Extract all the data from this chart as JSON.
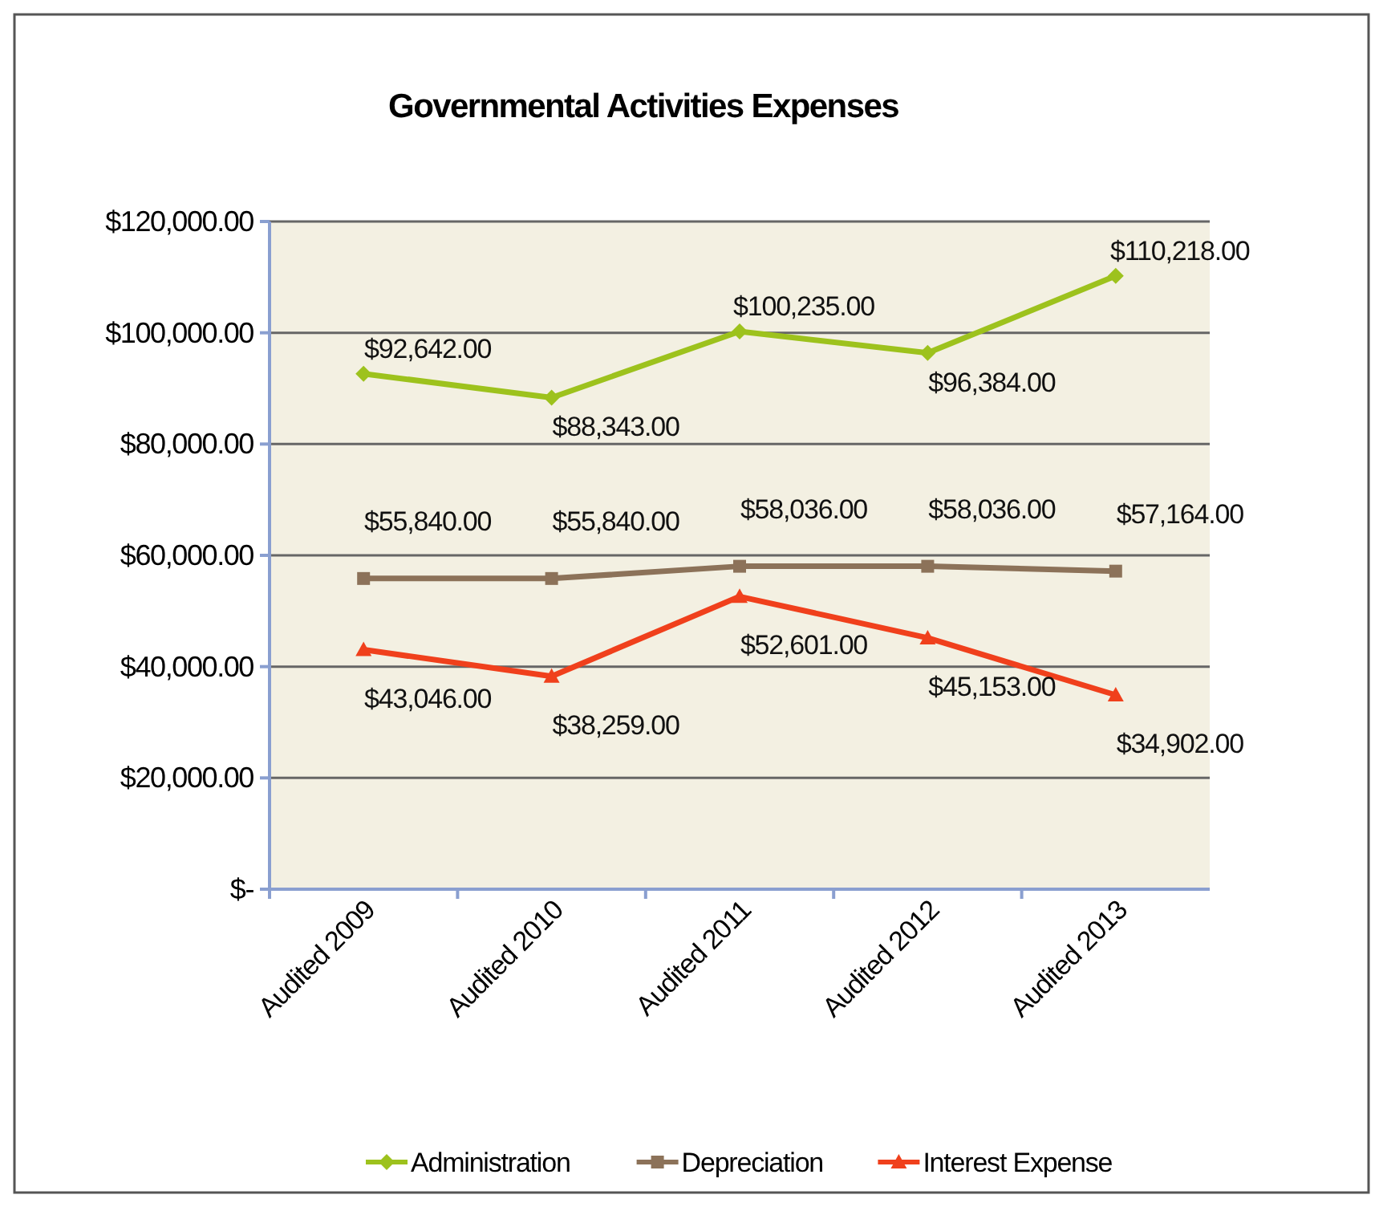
{
  "chart_data": {
    "type": "line",
    "title": "Governmental Activities Expenses",
    "categories": [
      "Audited 2009",
      "Audited 2010",
      "Audited 2011",
      "Audited 2012",
      "Audited 2013"
    ],
    "series": [
      {
        "name": "Administration",
        "color": "#9dc21d",
        "marker": "diamond",
        "values": [
          92642,
          88343,
          100235,
          96384,
          110218
        ],
        "value_labels": [
          "$92,642.00",
          "$88,343.00",
          "$100,235.00",
          "$96,384.00",
          "$110,218.00"
        ]
      },
      {
        "name": "Depreciation",
        "color": "#8c7259",
        "marker": "square",
        "values": [
          55840,
          55840,
          58036,
          58036,
          57164
        ],
        "value_labels": [
          "$55,840.00",
          "$55,840.00",
          "$58,036.00",
          "$58,036.00",
          "$57,164.00"
        ]
      },
      {
        "name": "Interest Expense",
        "color": "#f0401c",
        "marker": "triangle",
        "values": [
          43046,
          38259,
          52601,
          45153,
          34902
        ],
        "value_labels": [
          "$43,046.00",
          "$38,259.00",
          "$52,601.00",
          "$45,153.00",
          "$34,902.00"
        ]
      }
    ],
    "ylim": [
      0,
      120000
    ],
    "yticks": [
      {
        "value": 0,
        "label": "$-"
      },
      {
        "value": 20000,
        "label": "$20,000.00"
      },
      {
        "value": 40000,
        "label": "$40,000.00"
      },
      {
        "value": 60000,
        "label": "$60,000.00"
      },
      {
        "value": 80000,
        "label": "$80,000.00"
      },
      {
        "value": 100000,
        "label": "$100,000.00"
      },
      {
        "value": 120000,
        "label": "$120,000.00"
      }
    ],
    "grid": "y",
    "legend": "bottom",
    "line_style": "solid"
  }
}
